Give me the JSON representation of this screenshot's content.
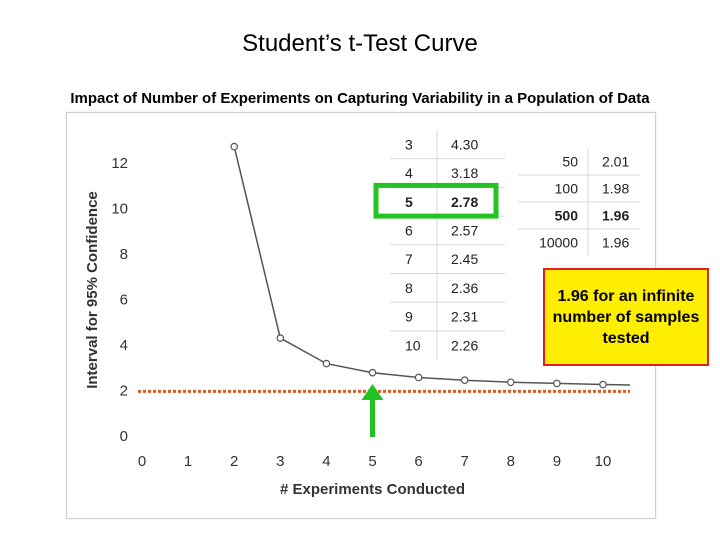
{
  "title": "Student’s t-Test Curve",
  "subtitle": "Impact of Number of Experiments on Capturing Variability in a Population of Data",
  "callout": "1.96 for an infinite number of samples tested",
  "colors": {
    "line": "#555555",
    "threshold": "#e05a1e",
    "highlight": "#22c322",
    "callout_bg": "#ffee00",
    "callout_border": "#e02020"
  },
  "chart_data": {
    "type": "line",
    "xlabel": "# Experiments Conducted",
    "ylabel": "Interval for 95% Confidence",
    "xlim": [
      0,
      10.6
    ],
    "ylim": [
      0,
      13
    ],
    "x_ticks": [
      0,
      1,
      2,
      3,
      4,
      5,
      6,
      7,
      8,
      9,
      10
    ],
    "y_ticks": [
      0,
      2,
      4,
      6,
      8,
      10,
      12
    ],
    "grid": false,
    "series": [
      {
        "x": [
          2,
          3,
          4,
          5,
          6,
          7,
          8,
          9,
          10
        ],
        "values": [
          12.71,
          4.3,
          3.18,
          2.78,
          2.57,
          2.45,
          2.36,
          2.31,
          2.26
        ],
        "trend_end": [
          10.6,
          2.24
        ]
      }
    ],
    "threshold": 1.96,
    "highlight_x": 5
  },
  "table1": {
    "rows": [
      {
        "n": "3",
        "t": "4.30",
        "bold": false
      },
      {
        "n": "4",
        "t": "3.18",
        "bold": false
      },
      {
        "n": "5",
        "t": "2.78",
        "bold": true
      },
      {
        "n": "6",
        "t": "2.57",
        "bold": false
      },
      {
        "n": "7",
        "t": "2.45",
        "bold": false
      },
      {
        "n": "8",
        "t": "2.36",
        "bold": false
      },
      {
        "n": "9",
        "t": "2.31",
        "bold": false
      },
      {
        "n": "10",
        "t": "2.26",
        "bold": false
      }
    ],
    "highlight_row": 2
  },
  "table2": {
    "rows": [
      {
        "n": "50",
        "t": "2.01",
        "bold": false
      },
      {
        "n": "100",
        "t": "1.98",
        "bold": false
      },
      {
        "n": "500",
        "t": "1.96",
        "bold": true
      },
      {
        "n": "10000",
        "t": "1.96",
        "bold": false
      }
    ]
  }
}
